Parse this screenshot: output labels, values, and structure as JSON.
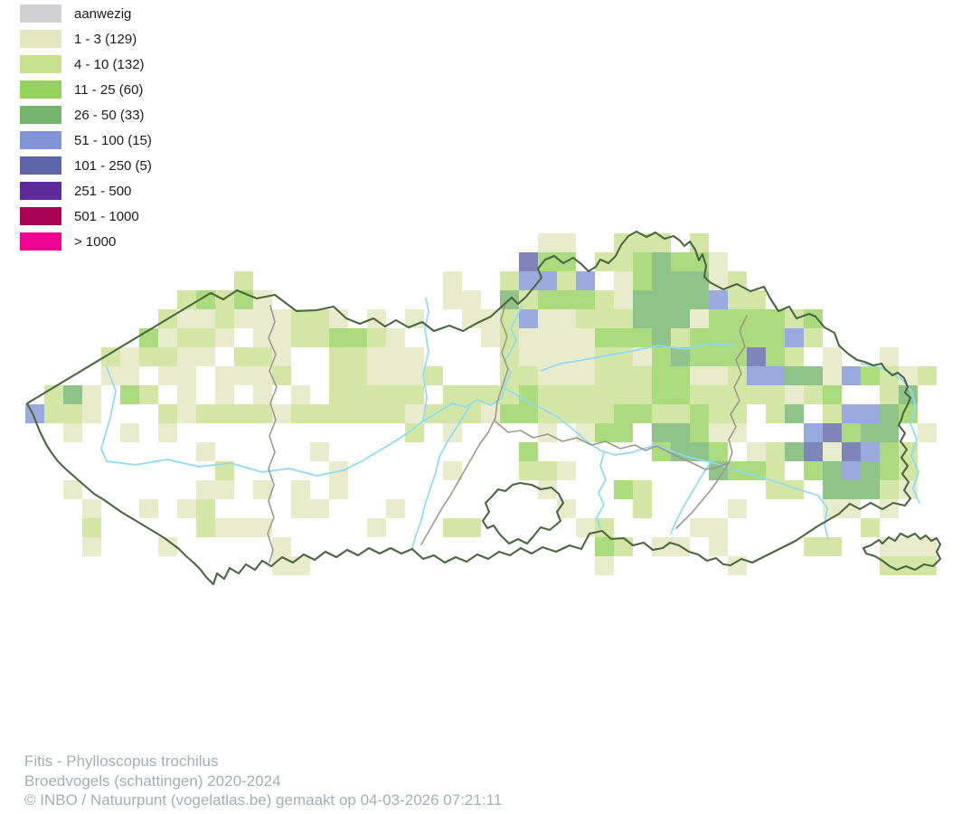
{
  "legend": {
    "items": [
      {
        "label": "aanwezig",
        "color": "#d1d1d4"
      },
      {
        "label": "1 - 3 (129)",
        "color": "#e3e6c1"
      },
      {
        "label": "4 - 10 (132)",
        "color": "#c9e08e"
      },
      {
        "label": "11 - 25 (60)",
        "color": "#97d15f"
      },
      {
        "label": "26 - 50 (33)",
        "color": "#74b46c"
      },
      {
        "label": "51 - 100 (15)",
        "color": "#8194d6"
      },
      {
        "label": "101 - 250 (5)",
        "color": "#5d66a9"
      },
      {
        "label": "251 - 500",
        "color": "#5e2b99"
      },
      {
        "label": "501 - 1000",
        "color": "#aa0356"
      },
      {
        "label": "> 1000",
        "color": "#ee0290"
      }
    ]
  },
  "map": {
    "type": "choropleth-grid",
    "region": "Vlaanderen (Flanders, Belgium) with Brussels enclave and Voeren exclave",
    "palette": {
      "0": "#d1d1d4",
      "1": "#e3e6c1",
      "2": "#c9e08e",
      "3": "#97d15f",
      "4": "#74b46c",
      "5": "#8194d6",
      "6": "#5d66a9",
      "7": "#5e2b99",
      "8": "#aa0356",
      "9": "#ee0290"
    },
    "category_values": {
      "1": "1 - 3",
      "2": "4 - 10",
      "3": "11 - 25",
      "4": "26 - 50",
      "5": "51 - 100",
      "6": "101 - 250"
    },
    "rows": [
      "...........................11..222.2.............",
      "..........................633.2234331............",
      "...........2..........1..25525.1344412...........",
      "........23231.........11.42333214444522..........",
      ".......2112111221.1.1..1125112224441333323.......",
      "......31221.11223321....121111333423333352.......",
      "....212211.221..22111....2111122134333632.1..1...",
      "....11.11.1112..221112...22111222331125544153212.",
      ".241.32.1.1.1.1.22222.222232222223322222123..24..",
      "5221...2122221222222122213322223322322.24.25543..",
      "..1..1.1............2.1....1.133.44311...56344.1.",
      ".........1.....1..........3......3443.124616532..",
      "..........2.....1.....1...221.......4332.345432..",
      "..1......11.1.1.1..........1...32......22.44421..",
      "...1..1.12....11...1........1...2....1....11.1...",
      "...2.....2111.....1...22.....12....11.......2....",
      "...1...1.....1................32.11.1....22..111.",
      ".............11...............1......1.......222.",
      "................................................."
    ],
    "line_colors": {
      "flanders_boundary": "#4a6741",
      "province_boundary": "#9b938b",
      "river": "#8fd9f2"
    }
  },
  "caption": {
    "species": "Fitis - Phylloscopus trochilus",
    "subtitle": "Broedvogels (schattingen) 2020-2024",
    "credit": "© INBO / Natuurpunt (vogelatlas.be) gemaakt op 04-03-2026 07:21:11"
  }
}
